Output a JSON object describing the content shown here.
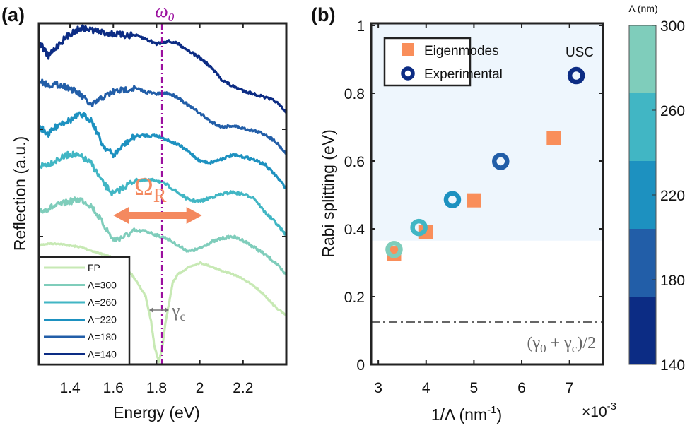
{
  "chart_data": [
    {
      "panel_label": "(a)",
      "type": "line",
      "xlabel": "Energy (eV)",
      "ylabel": "Reflection (a.u.)",
      "xlim": [
        1.256,
        2.4
      ],
      "ylim": [
        0,
        1
      ],
      "xticks": [
        1.4,
        1.6,
        1.8,
        2.0,
        2.2
      ],
      "xtick_labels": [
        "1.4",
        "1.6",
        "1.8",
        "2",
        "2.2"
      ],
      "ytick_labels_shown": false,
      "legend_position": "bottom-left",
      "annotations": {
        "omega0": {
          "label": "ω",
          "sub": "0",
          "energy": 1.826,
          "color": "#9b0f9f",
          "style": "dash-dot"
        },
        "rabi": {
          "label": "Ω",
          "sub": "R",
          "from": 1.6,
          "to": 2.01,
          "color": "#f4895f"
        },
        "gamma_c": {
          "label": "γ",
          "sub": "c",
          "from": 1.76,
          "to": 1.86,
          "color": "#777777"
        }
      },
      "series": [
        {
          "name": "FP",
          "color": "#c7e9b4",
          "x": [
            1.26,
            1.3,
            1.35,
            1.4,
            1.45,
            1.5,
            1.55,
            1.6,
            1.65,
            1.7,
            1.75,
            1.775,
            1.79,
            1.81,
            1.825,
            1.84,
            1.86,
            1.875,
            1.9,
            1.95,
            2.0,
            2.05,
            2.1,
            2.15,
            2.2,
            2.25,
            2.3,
            2.35,
            2.4
          ],
          "y": [
            0.35,
            0.354,
            0.354,
            0.348,
            0.344,
            0.333,
            0.323,
            0.313,
            0.292,
            0.251,
            0.199,
            0.126,
            0.054,
            0.008,
            0.043,
            0.116,
            0.188,
            0.24,
            0.265,
            0.286,
            0.298,
            0.288,
            0.275,
            0.265,
            0.251,
            0.23,
            0.203,
            0.168,
            0.143
          ]
        },
        {
          "name": "Λ=300",
          "color": "#7fcdbb",
          "x": [
            1.26,
            1.3,
            1.35,
            1.4,
            1.45,
            1.5,
            1.55,
            1.6,
            1.65,
            1.7,
            1.75,
            1.8,
            1.85,
            1.9,
            1.95,
            2.0,
            2.05,
            2.1,
            2.15,
            2.2,
            2.25,
            2.3,
            2.35,
            2.4
          ],
          "y": [
            0.447,
            0.458,
            0.468,
            0.478,
            0.484,
            0.464,
            0.416,
            0.364,
            0.375,
            0.391,
            0.391,
            0.379,
            0.369,
            0.348,
            0.331,
            0.34,
            0.358,
            0.369,
            0.375,
            0.364,
            0.344,
            0.323,
            0.298,
            0.261
          ]
        },
        {
          "name": "Λ=260",
          "color": "#41b6c4",
          "x": [
            1.26,
            1.3,
            1.35,
            1.4,
            1.45,
            1.5,
            1.55,
            1.6,
            1.65,
            1.7,
            1.75,
            1.8,
            1.85,
            1.9,
            1.95,
            2.0,
            2.05,
            2.1,
            2.15,
            2.2,
            2.25,
            2.3,
            2.35,
            2.4
          ],
          "y": [
            0.582,
            0.588,
            0.602,
            0.617,
            0.609,
            0.588,
            0.534,
            0.499,
            0.52,
            0.54,
            0.54,
            0.54,
            0.526,
            0.503,
            0.482,
            0.478,
            0.489,
            0.499,
            0.505,
            0.499,
            0.489,
            0.447,
            0.416,
            0.379
          ]
        },
        {
          "name": "Λ=220",
          "color": "#1d91c0",
          "x": [
            1.26,
            1.3,
            1.35,
            1.4,
            1.45,
            1.5,
            1.55,
            1.6,
            1.65,
            1.7,
            1.75,
            1.8,
            1.85,
            1.9,
            1.95,
            2.0,
            2.05,
            2.1,
            2.15,
            2.2,
            2.25,
            2.3,
            2.35,
            2.4
          ],
          "y": [
            0.696,
            0.675,
            0.706,
            0.716,
            0.733,
            0.716,
            0.644,
            0.613,
            0.644,
            0.669,
            0.671,
            0.671,
            0.658,
            0.644,
            0.623,
            0.596,
            0.592,
            0.602,
            0.613,
            0.609,
            0.6,
            0.586,
            0.555,
            0.516
          ]
        },
        {
          "name": "Λ=180",
          "color": "#225ea8",
          "x": [
            1.26,
            1.3,
            1.35,
            1.4,
            1.45,
            1.5,
            1.55,
            1.6,
            1.65,
            1.7,
            1.75,
            1.8,
            1.85,
            1.9,
            1.95,
            2.0,
            2.05,
            2.1,
            2.15,
            2.2,
            2.25,
            2.3,
            2.35,
            2.4
          ],
          "y": [
            0.83,
            0.82,
            0.82,
            0.81,
            0.789,
            0.758,
            0.783,
            0.799,
            0.805,
            0.81,
            0.799,
            0.793,
            0.795,
            0.783,
            0.758,
            0.737,
            0.712,
            0.696,
            0.7,
            0.692,
            0.685,
            0.675,
            0.654,
            0.617
          ]
        },
        {
          "name": "Λ=140",
          "color": "#0c2c84",
          "x": [
            1.26,
            1.3,
            1.35,
            1.4,
            1.45,
            1.5,
            1.55,
            1.6,
            1.65,
            1.7,
            1.75,
            1.8,
            1.85,
            1.9,
            1.95,
            2.0,
            2.05,
            2.1,
            2.15,
            2.2,
            2.25,
            2.3,
            2.35,
            2.4
          ],
          "y": [
            0.944,
            0.903,
            0.94,
            0.969,
            0.986,
            0.981,
            0.973,
            0.969,
            0.965,
            0.965,
            0.954,
            0.94,
            0.948,
            0.94,
            0.919,
            0.899,
            0.872,
            0.836,
            0.816,
            0.803,
            0.793,
            0.783,
            0.772,
            0.737
          ]
        }
      ]
    },
    {
      "panel_label": "(b)",
      "type": "scatter",
      "xlabel": "1/Λ (nm",
      "xlabel_sup": "-1",
      "xlabel_end": ")",
      "x_multiplier": "×10",
      "x_multiplier_sup": "-3",
      "ylabel": "Rabi splitting (eV)",
      "xlim": [
        2.85,
        7.7
      ],
      "ylim": [
        0,
        1
      ],
      "xticks": [
        3,
        4,
        5,
        6,
        7
      ],
      "xtick_labels": [
        "3",
        "4",
        "5",
        "6",
        "7"
      ],
      "yticks": [
        0,
        0.2,
        0.4,
        0.6,
        0.8,
        1
      ],
      "ytick_labels": [
        "0",
        "0.2",
        "0.4",
        "0.6",
        "0.8",
        "1"
      ],
      "legend_position": "top-left",
      "usc_region": {
        "label": "USC",
        "ymin": 0.365,
        "ymax": 1,
        "color": "#eef6fd",
        "label_color": "#1a8fe3"
      },
      "threshold": {
        "label_parts": [
          "(γ",
          "0",
          " + γ",
          "c",
          ")/2"
        ],
        "y": 0.126,
        "color": "#666666",
        "style": "dash-dot"
      },
      "series": [
        {
          "name": "Eigenmodes",
          "marker": "square",
          "color": "#f98e5a",
          "x": [
            3.33,
            4.0,
            5.0,
            6.67
          ],
          "y": [
            0.327,
            0.391,
            0.484,
            0.667
          ]
        },
        {
          "name": "Experimental",
          "marker": "ring",
          "legend_color": "#0c2c84",
          "x": [
            3.33,
            3.85,
            4.55,
            5.56,
            7.14
          ],
          "y": [
            0.339,
            0.404,
            0.486,
            0.599,
            0.852
          ],
          "lambda_nm": [
            300,
            260,
            220,
            180,
            140
          ]
        }
      ],
      "colorbar": {
        "title": "Λ (nm)",
        "range": [
          140,
          300
        ],
        "ticks": [
          140,
          180,
          220,
          260,
          300
        ],
        "bands": [
          {
            "from": 140,
            "to": 172,
            "color": "#0c2c84"
          },
          {
            "from": 172,
            "to": 204,
            "color": "#225ea8"
          },
          {
            "from": 204,
            "to": 236,
            "color": "#1d91c0"
          },
          {
            "from": 236,
            "to": 268,
            "color": "#41b6c4"
          },
          {
            "from": 268,
            "to": 300,
            "color": "#7fcdbb"
          }
        ]
      }
    }
  ]
}
